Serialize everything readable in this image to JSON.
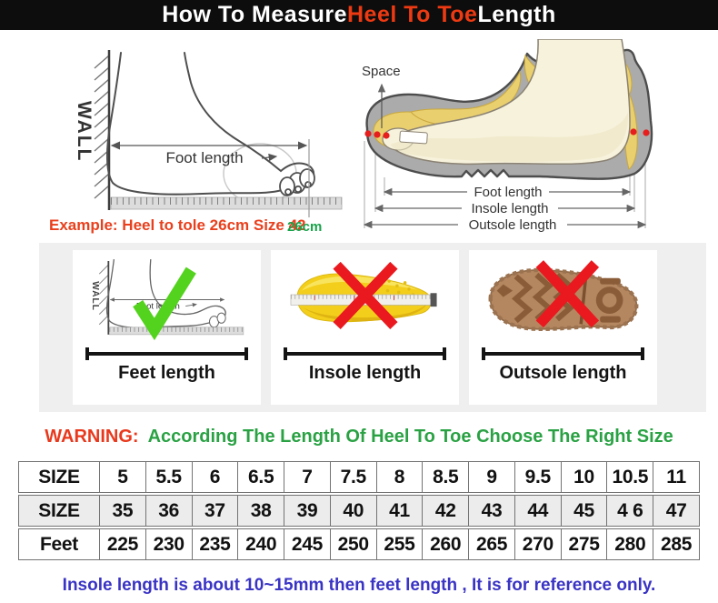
{
  "colors": {
    "header_bg": "#0d0d0d",
    "header_text": "#ffffff",
    "accent_red": "#ee3a12",
    "example_red": "#e8401d",
    "mark_green": "#18a24a",
    "warning_green": "#2aa244",
    "footnote_blue": "#3a34c4",
    "check_green": "#53d31d",
    "cross_red": "#e9191f",
    "insole_yellow": "#f3cf1b",
    "outsole_brown": "#b58760",
    "shoe_gray": "#ababab",
    "foot_cream": "#f7f2dc",
    "strip_bg": "#efefef"
  },
  "header": {
    "prefix": "How To Measure ",
    "highlight": "Heel To Toe",
    "suffix": " Length"
  },
  "left_diagram": {
    "wall_label": "WALL",
    "foot_length_label": "Foot length",
    "example_text": "Example: Heel to tole 26cm Size 42",
    "measure_value": "26cm"
  },
  "right_diagram": {
    "space_label": "Space",
    "foot_length_label": "Foot length",
    "insole_length_label": "Insole length",
    "outsole_length_label": "Outsole length"
  },
  "panels": {
    "feet": {
      "wall_label": "WALL",
      "inner_label": "Foot length",
      "caption": "Feet length"
    },
    "insole": {
      "caption": "Insole length"
    },
    "outsole": {
      "caption": "Outsole length"
    }
  },
  "warning": {
    "prefix": "WARNING:",
    "message": "According The Length Of Heel To Toe Choose The Right Size"
  },
  "size_table": {
    "rows": [
      {
        "header": "SIZE",
        "values": [
          "5",
          "5.5",
          "6",
          "6.5",
          "7",
          "7.5",
          "8",
          "8.5",
          "9",
          "9.5",
          "10",
          "10.5",
          "11"
        ]
      },
      {
        "header": "SIZE",
        "values": [
          "35",
          "36",
          "37",
          "38",
          "39",
          "40",
          "41",
          "42",
          "43",
          "44",
          "45",
          "4 6",
          "47"
        ]
      },
      {
        "header": "Feet",
        "values": [
          "225",
          "230",
          "235",
          "240",
          "245",
          "250",
          "255",
          "260",
          "265",
          "270",
          "275",
          "280",
          "285"
        ]
      }
    ]
  },
  "footnote": "Insole length is about 10~15mm then feet length , It is for reference only."
}
